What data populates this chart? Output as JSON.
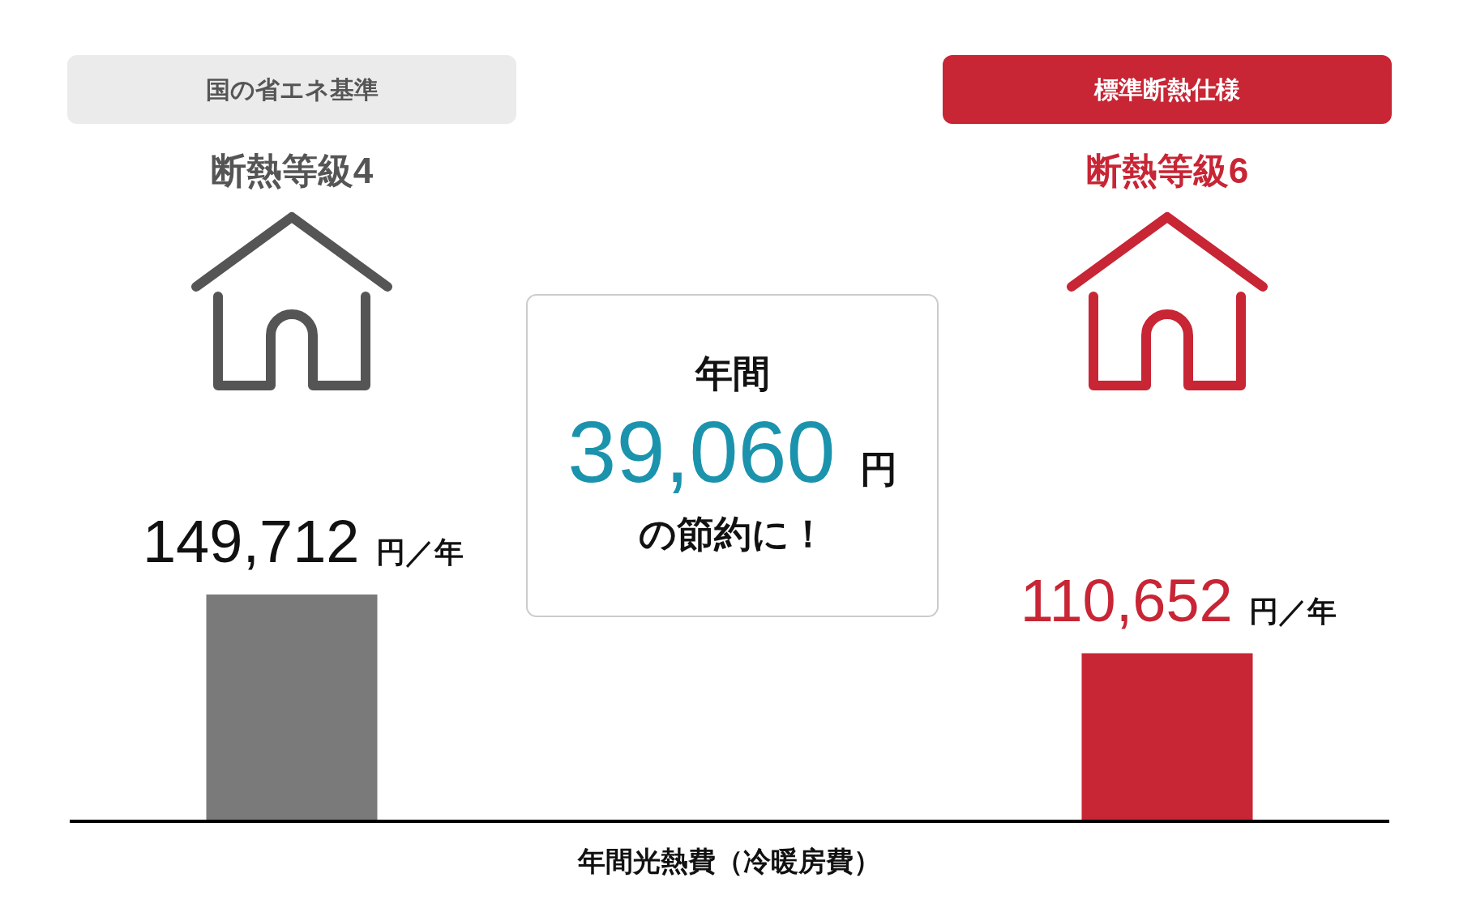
{
  "chart_data": {
    "type": "bar",
    "categories": [
      "断熱等級4",
      "断熱等級6"
    ],
    "values": [
      149712,
      110652
    ],
    "colors": [
      "#7a7a7a",
      "#c82535"
    ],
    "value_labels": [
      "149,712 円／年",
      "110,652 円／年"
    ],
    "xlabel": "年間光熱費（冷暖房費）",
    "annotations": [
      "国の省エネ基準",
      "標準断熱仕様",
      "年間",
      "39,060 円",
      "の節約に！"
    ]
  }
}
